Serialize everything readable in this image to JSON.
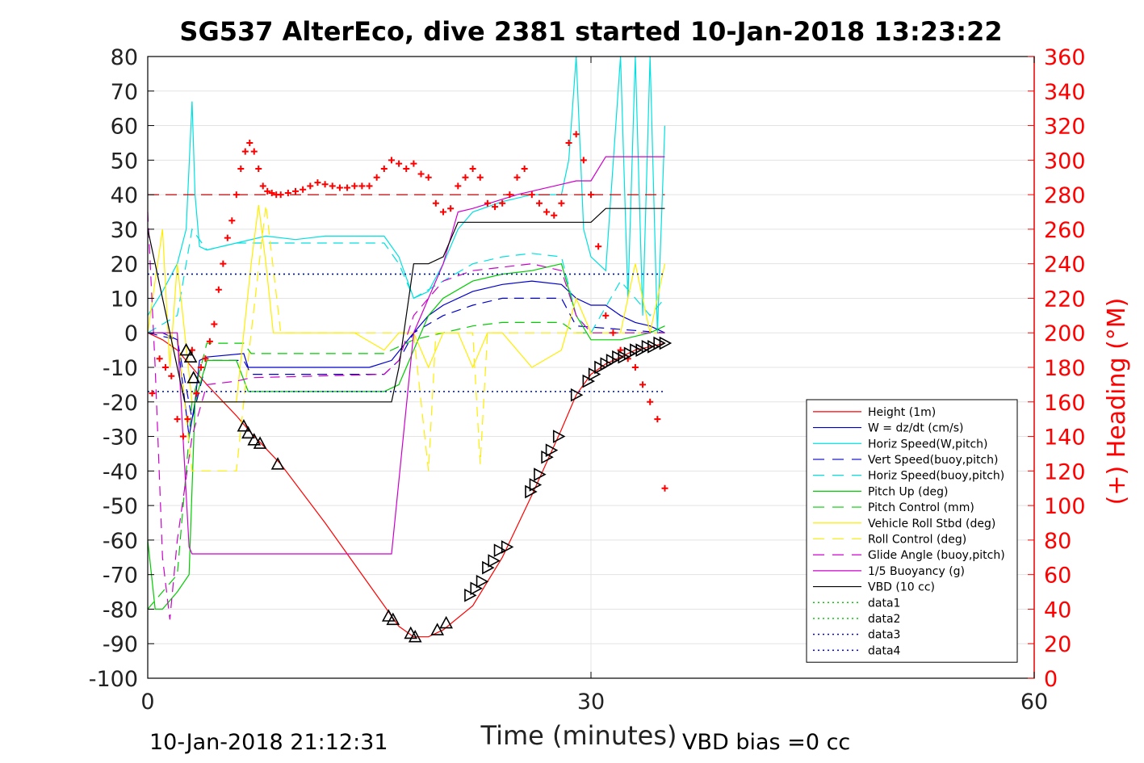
{
  "chart_data": {
    "type": "line",
    "title": "SG537 AlterEco, dive 2381 started 10-Jan-2018 13:23:22",
    "xlabel": "Time (minutes)",
    "ylabel": "",
    "y2label": "(+) Heading (°M)",
    "xlim": [
      0,
      60
    ],
    "ylim": [
      -100,
      80
    ],
    "y2lim": [
      0,
      360
    ],
    "xticks": [
      "0",
      "30",
      "60"
    ],
    "yticks": [
      "80",
      "70",
      "60",
      "50",
      "40",
      "30",
      "20",
      "10",
      "0",
      "-10",
      "-20",
      "-30",
      "-40",
      "-50",
      "-60",
      "-70",
      "-80",
      "-90",
      "-100"
    ],
    "y2ticks": [
      "360",
      "340",
      "320",
      "300",
      "280",
      "260",
      "240",
      "220",
      "200",
      "180",
      "160",
      "140",
      "120",
      "100",
      "80",
      "60",
      "40",
      "20",
      "0"
    ],
    "footer_left": "10-Jan-2018 21:12:31",
    "footer_right": "VBD bias =0 cc",
    "grid": true,
    "legend_position": "lower-right",
    "colors": {
      "heading": "#ff0000",
      "y2axis": "#ff0000",
      "ref_heading": "#c00000"
    },
    "legend": [
      {
        "label": "Height (1m)",
        "color": "#ff0000",
        "dash": "solid"
      },
      {
        "label": "W = dz/dt (cm/s)",
        "color": "#0000cc",
        "dash": "solid"
      },
      {
        "label": "Horiz Speed(W,pitch)",
        "color": "#00e0e0",
        "dash": "solid"
      },
      {
        "label": "Vert Speed(buoy,pitch)",
        "color": "#0000cc",
        "dash": "dashed"
      },
      {
        "label": "Horiz Speed(buoy,pitch)",
        "color": "#00e0e0",
        "dash": "dashed"
      },
      {
        "label": "Pitch Up (deg)",
        "color": "#00cc00",
        "dash": "solid"
      },
      {
        "label": "Pitch Control (mm)",
        "color": "#00cc00",
        "dash": "dashed"
      },
      {
        "label": "Vehicle Roll Stbd (deg)",
        "color": "#ffee00",
        "dash": "solid"
      },
      {
        "label": "Roll Control (deg)",
        "color": "#ffee00",
        "dash": "dashed"
      },
      {
        "label": "Glide Angle (buoy,pitch)",
        "color": "#cc00cc",
        "dash": "dashed"
      },
      {
        "label": "1/5 Buoyancy (g)",
        "color": "#cc00cc",
        "dash": "solid"
      },
      {
        "label": "VBD (10 cc)",
        "color": "#000000",
        "dash": "solid"
      },
      {
        "label": "data1",
        "color": "#00cc00",
        "dash": "dotted"
      },
      {
        "label": "data2",
        "color": "#00cc00",
        "dash": "dotted"
      },
      {
        "label": "data3",
        "color": "#0000cc",
        "dash": "dotted"
      },
      {
        "label": "data4",
        "color": "#0000cc",
        "dash": "dotted"
      }
    ],
    "series": [
      {
        "name": "Height (1m)",
        "color": "#ff0000",
        "dash": "solid",
        "x": [
          0,
          1,
          2,
          3,
          4,
          6,
          7,
          9,
          12,
          15,
          16.5,
          17,
          18,
          19,
          20,
          22,
          24,
          26,
          28,
          29,
          30,
          31,
          32,
          33,
          34,
          35
        ],
        "y": [
          0,
          -2,
          -5,
          -10,
          -15,
          -24,
          -29,
          -38,
          -55,
          -73,
          -82,
          -85,
          -88,
          -88,
          -86,
          -79,
          -65,
          -47,
          -28,
          -18,
          -12,
          -9,
          -7,
          -5,
          -4,
          -3
        ]
      },
      {
        "name": "W = dz/dt (cm/s)",
        "color": "#0000cc",
        "dash": "solid",
        "x": [
          0,
          1,
          2,
          2.8,
          3.2,
          3.5,
          4,
          6.5,
          6.8,
          10,
          15,
          16.5,
          18,
          19,
          20,
          22,
          24,
          26,
          28,
          29,
          30,
          31,
          32,
          33,
          34,
          35
        ],
        "y": [
          0,
          0,
          -2,
          -30,
          -20,
          -8,
          -7,
          -6,
          -10,
          -10,
          -10,
          -8,
          0,
          5,
          8,
          12,
          14,
          15,
          14,
          10,
          8,
          8,
          5,
          3,
          2,
          0
        ]
      },
      {
        "name": "Horiz Speed(W,pitch)",
        "color": "#00e0e0",
        "dash": "solid",
        "x": [
          0,
          1,
          2,
          2.6,
          3,
          3.2,
          3.5,
          4,
          6,
          8,
          10,
          12,
          14,
          16,
          17,
          18,
          19,
          20,
          21,
          22,
          24,
          26,
          28,
          28.5,
          29,
          29.5,
          30,
          31,
          32,
          32.5,
          33,
          33.5,
          34,
          34.5,
          35
        ],
        "y": [
          5,
          12,
          20,
          30,
          67,
          40,
          25,
          24,
          26,
          28,
          27,
          28,
          28,
          28,
          22,
          10,
          12,
          20,
          30,
          35,
          38,
          40,
          40,
          50,
          80,
          30,
          22,
          18,
          80,
          10,
          80,
          5,
          80,
          0,
          60
        ]
      },
      {
        "name": "Vert Speed(buoy,pitch)",
        "color": "#0000cc",
        "dash": "dashed",
        "x": [
          0,
          2,
          3,
          4,
          6.5,
          7,
          16,
          17,
          18,
          20,
          22,
          24,
          26,
          28,
          29,
          35
        ],
        "y": [
          0,
          -2,
          -25,
          -8,
          -8,
          -12,
          -12,
          -8,
          0,
          5,
          8,
          10,
          10,
          10,
          2,
          0
        ]
      },
      {
        "name": "Horiz Speed(buoy,pitch)",
        "color": "#00e0e0",
        "dash": "dashed",
        "x": [
          0,
          2,
          3,
          4,
          6,
          16,
          17,
          18,
          20,
          22,
          24,
          26,
          28,
          29,
          30,
          32,
          34,
          35
        ],
        "y": [
          0,
          5,
          30,
          24,
          26,
          26,
          20,
          10,
          15,
          20,
          22,
          23,
          22,
          5,
          0,
          15,
          5,
          10
        ]
      },
      {
        "name": "Pitch Up (deg)",
        "color": "#00cc00",
        "dash": "solid",
        "x": [
          0,
          0.5,
          1,
          2,
          2.8,
          3.2,
          4,
          6,
          6.8,
          10,
          16,
          17,
          18,
          19,
          20,
          22,
          24,
          26,
          28,
          29,
          30,
          32,
          34,
          35
        ],
        "y": [
          -60,
          -80,
          -80,
          -75,
          -70,
          -20,
          -8,
          -8,
          -17,
          -17,
          -17,
          -15,
          -5,
          5,
          10,
          15,
          17,
          18,
          20,
          5,
          -2,
          -2,
          0,
          2
        ]
      },
      {
        "name": "Pitch Control (mm)",
        "color": "#00cc00",
        "dash": "dashed",
        "x": [
          0,
          2,
          3,
          4,
          6.5,
          7,
          16,
          17,
          18,
          20,
          22,
          24,
          26,
          28,
          29,
          30,
          35
        ],
        "y": [
          -80,
          -70,
          -20,
          -3,
          -3,
          -6,
          -6,
          -4,
          -2,
          0,
          2,
          3,
          3,
          3,
          0,
          0,
          0
        ]
      },
      {
        "name": "Vehicle Roll Stbd (deg)",
        "color": "#ffee00",
        "dash": "solid",
        "x": [
          0,
          1,
          1.5,
          2,
          3,
          3.5,
          4,
          6,
          7,
          7.5,
          8,
          8.5,
          9,
          14,
          16,
          17,
          18,
          19,
          20,
          21,
          22,
          23,
          24,
          26,
          28,
          29,
          30,
          32,
          33,
          34,
          35
        ],
        "y": [
          0,
          30,
          -10,
          20,
          -20,
          -20,
          -20,
          -20,
          20,
          37,
          20,
          0,
          0,
          0,
          -5,
          0,
          0,
          -10,
          0,
          0,
          -10,
          0,
          0,
          -10,
          -5,
          10,
          0,
          0,
          20,
          0,
          20
        ]
      },
      {
        "name": "Roll Control (deg)",
        "color": "#ffee00",
        "dash": "dashed",
        "x": [
          0,
          2,
          3,
          4,
          6,
          7,
          8,
          9,
          16,
          18,
          19,
          19.5,
          20,
          22,
          22.5,
          23,
          26,
          28,
          29,
          30,
          32,
          34,
          35
        ],
        "y": [
          0,
          0,
          -40,
          -40,
          -40,
          0,
          37,
          0,
          0,
          0,
          -40,
          0,
          0,
          0,
          -38,
          0,
          0,
          0,
          0,
          0,
          0,
          0,
          0
        ]
      },
      {
        "name": "Glide Angle (buoy,pitch)",
        "color": "#cc00cc",
        "dash": "dashed",
        "x": [
          0,
          0.5,
          1,
          1.5,
          2,
          3,
          4,
          6,
          7,
          16,
          17,
          18,
          20,
          22,
          24,
          26,
          28,
          29,
          30,
          35
        ],
        "y": [
          35,
          -10,
          -65,
          -83,
          -60,
          -30,
          -15,
          -14,
          -13,
          -12,
          -8,
          5,
          15,
          18,
          19,
          20,
          18,
          5,
          0,
          0
        ]
      },
      {
        "name": "1/5 Buoyancy (g)",
        "color": "#cc00cc",
        "dash": "solid",
        "x": [
          0,
          1,
          2,
          2.8,
          3,
          4,
          10,
          15,
          16.5,
          18,
          20,
          21,
          22,
          25,
          28,
          29,
          30,
          31,
          34,
          35
        ],
        "y": [
          0,
          0,
          0,
          -62,
          -64,
          -64,
          -64,
          -64,
          -64,
          0,
          20,
          35,
          36,
          40,
          43,
          44,
          44,
          51,
          51,
          51
        ]
      },
      {
        "name": "VBD (10 cc)",
        "color": "#000000",
        "dash": "solid",
        "x": [
          0,
          1,
          2,
          2.5,
          3,
          4,
          8,
          12,
          16.5,
          17,
          18,
          19,
          20,
          21,
          22,
          25,
          28,
          30,
          31,
          33,
          35
        ],
        "y": [
          30,
          10,
          -10,
          -20,
          -20,
          -20,
          -20,
          -20,
          -20,
          -10,
          20,
          20,
          22,
          32,
          32,
          32,
          32,
          32,
          36,
          36,
          36
        ]
      },
      {
        "name": "data1",
        "color": "#00cc00",
        "dash": "dotted",
        "x": [
          0,
          35
        ],
        "y": [
          17,
          17
        ]
      },
      {
        "name": "data2",
        "color": "#00cc00",
        "dash": "dotted",
        "x": [
          0,
          35
        ],
        "y": [
          -17,
          -17
        ]
      },
      {
        "name": "data3",
        "color": "#0000cc",
        "dash": "dotted",
        "x": [
          0,
          35
        ],
        "y": [
          17,
          17
        ]
      },
      {
        "name": "data4",
        "color": "#0000cc",
        "dash": "dotted",
        "x": [
          0,
          35
        ],
        "y": [
          -17,
          -17
        ]
      }
    ],
    "heading_reference": {
      "value": 280,
      "axis": "y2",
      "x": [
        0,
        35
      ]
    },
    "heading_points": {
      "axis": "y2",
      "x": [
        0.3,
        0.8,
        1.2,
        1.6,
        2.0,
        2.4,
        2.7,
        3.0,
        3.3,
        3.6,
        3.9,
        4.2,
        4.5,
        4.8,
        5.1,
        5.4,
        5.7,
        6.0,
        6.3,
        6.6,
        6.9,
        7.2,
        7.5,
        7.8,
        8.1,
        8.4,
        8.7,
        9.0,
        9.5,
        10,
        10.5,
        11,
        11.5,
        12,
        12.5,
        13,
        13.5,
        14,
        14.5,
        15,
        15.5,
        16,
        16.5,
        17,
        17.5,
        18,
        18.5,
        19,
        19.5,
        20,
        20.5,
        21,
        21.5,
        22,
        22.5,
        23,
        23.5,
        24,
        24.5,
        25,
        25.5,
        26,
        26.5,
        27,
        27.5,
        28,
        28.5,
        29,
        29.5,
        30,
        30.5,
        31,
        31.5,
        32,
        32.5,
        33,
        33.5,
        34,
        34.5,
        35
      ],
      "y": [
        165,
        185,
        180,
        175,
        150,
        140,
        150,
        190,
        165,
        180,
        185,
        195,
        205,
        225,
        240,
        255,
        265,
        280,
        295,
        305,
        310,
        305,
        295,
        285,
        282,
        281,
        280,
        280,
        281,
        282,
        283,
        285,
        287,
        286,
        285,
        284,
        284,
        285,
        285,
        285,
        290,
        295,
        300,
        298,
        295,
        298,
        292,
        290,
        275,
        270,
        272,
        285,
        290,
        295,
        290,
        275,
        273,
        275,
        280,
        290,
        295,
        280,
        275,
        270,
        268,
        275,
        310,
        315,
        300,
        280,
        250,
        210,
        200,
        190,
        185,
        180,
        170,
        160,
        150,
        110
      ]
    },
    "markers_down": {
      "x": [
        2.6,
        2.9,
        3.1,
        6.5,
        6.8,
        7.2,
        7.6,
        8.8,
        16.3,
        16.6,
        17.8,
        18.1,
        19.6,
        20.2
      ],
      "y": [
        -5,
        -7,
        -13,
        -27,
        -29,
        -31,
        -32,
        -38,
        -82,
        -83,
        -87,
        -88,
        -86,
        -84
      ]
    },
    "markers_up": {
      "x": [
        21.8,
        22.2,
        22.6,
        23.0,
        23.4,
        23.8,
        24.3,
        25.9,
        26.2,
        26.5,
        27.0,
        27.3,
        27.8,
        29.0,
        29.8,
        30.2,
        30.6,
        31.0,
        31.4,
        31.8,
        32.2,
        32.6,
        33.0,
        33.4,
        33.8,
        34.2,
        34.6,
        35.0
      ],
      "y": [
        -76,
        -74,
        -72,
        -68,
        -66,
        -63,
        -62,
        -46,
        -44,
        -41,
        -36,
        -34,
        -30,
        -18,
        -14,
        -12,
        -10,
        -9,
        -8,
        -7,
        -7,
        -6,
        -5,
        -5,
        -4,
        -4,
        -3,
        -3
      ]
    }
  }
}
